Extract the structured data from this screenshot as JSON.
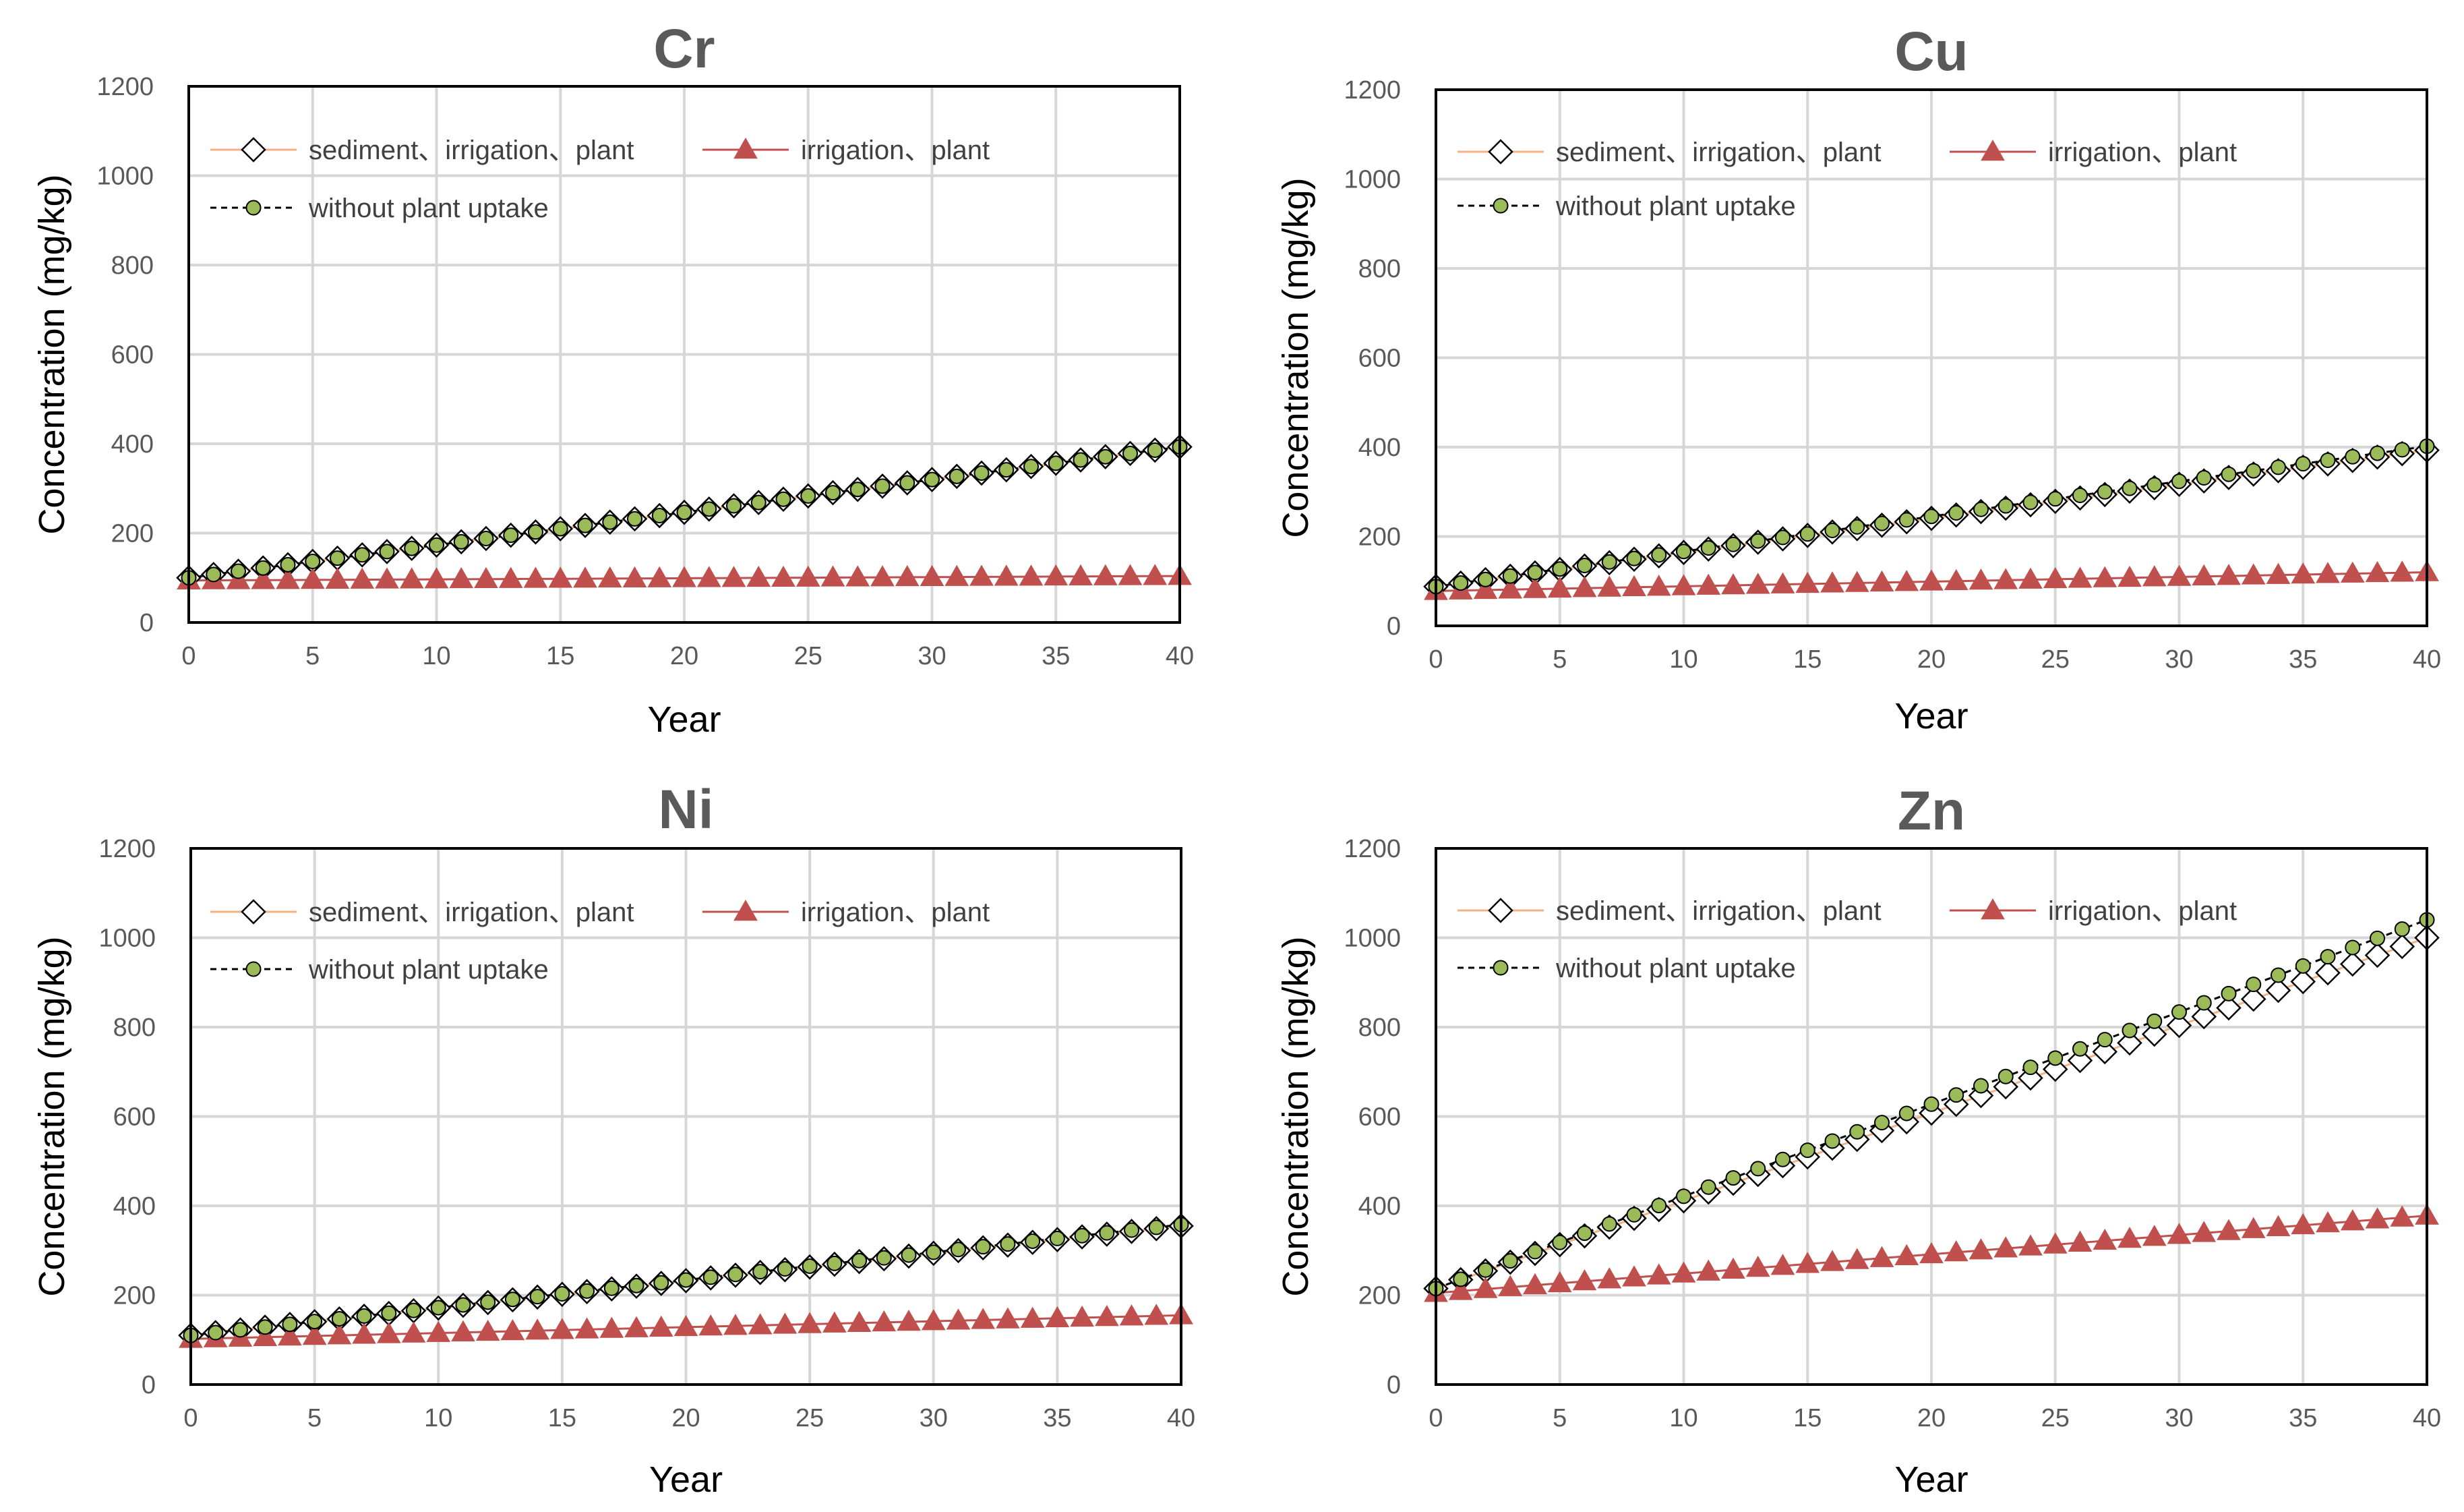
{
  "chart_data": [
    {
      "type": "line",
      "title": "Cr",
      "xlabel": "Year",
      "ylabel": "Concentration (mg/kg)",
      "xlim": [
        0,
        40
      ],
      "ylim": [
        0,
        1200
      ],
      "xticks": [
        "0",
        "5",
        "10",
        "15",
        "20",
        "25",
        "30",
        "35",
        "40"
      ],
      "yticks": [
        "0",
        "200",
        "400",
        "600",
        "800",
        "1000",
        "1200"
      ],
      "grid": true,
      "legend_position": "top-left",
      "x": "0..40 by 1",
      "series": [
        {
          "name": "sediment、irrigation、plant",
          "marker": "diamond",
          "start": 100,
          "end": 393
        },
        {
          "name": "irrigation、plant",
          "marker": "triangle",
          "start": 94,
          "end": 104
        },
        {
          "name": "without plant uptake",
          "marker": "circle",
          "start": 100,
          "end": 393
        }
      ]
    },
    {
      "type": "line",
      "title": "Cu",
      "xlabel": "Year",
      "ylabel": "Concentration (mg/kg)",
      "xlim": [
        0,
        40
      ],
      "ylim": [
        0,
        1200
      ],
      "xticks": [
        "0",
        "5",
        "10",
        "15",
        "20",
        "25",
        "30",
        "35",
        "40"
      ],
      "yticks": [
        "0",
        "200",
        "400",
        "600",
        "800",
        "1000",
        "1200"
      ],
      "grid": true,
      "legend_position": "top-left",
      "x": "0..40 by 1",
      "series": [
        {
          "name": "sediment、irrigation、plant",
          "marker": "diamond",
          "start": 88,
          "end": 393
        },
        {
          "name": "irrigation、plant",
          "marker": "triangle",
          "start": 78,
          "end": 120
        },
        {
          "name": "without plant uptake",
          "marker": "circle",
          "start": 88,
          "end": 402
        }
      ]
    },
    {
      "type": "line",
      "title": "Ni",
      "xlabel": "Year",
      "ylabel": "Concentration (mg/kg)",
      "xlim": [
        0,
        40
      ],
      "ylim": [
        0,
        1200
      ],
      "xticks": [
        "0",
        "5",
        "10",
        "15",
        "20",
        "25",
        "30",
        "35",
        "40"
      ],
      "yticks": [
        "0",
        "200",
        "400",
        "600",
        "800",
        "1000",
        "1200"
      ],
      "grid": true,
      "legend_position": "top-left",
      "x": "0..40 by 1",
      "series": [
        {
          "name": "sediment、irrigation、plant",
          "marker": "diamond",
          "start": 110,
          "end": 355
        },
        {
          "name": "irrigation、plant",
          "marker": "triangle",
          "start": 102,
          "end": 155
        },
        {
          "name": "without plant uptake",
          "marker": "circle",
          "start": 110,
          "end": 358
        }
      ]
    },
    {
      "type": "line",
      "title": "Zn",
      "xlabel": "Year",
      "ylabel": "Concentration (mg/kg)",
      "xlim": [
        0,
        40
      ],
      "ylim": [
        0,
        1200
      ],
      "xticks": [
        "0",
        "5",
        "10",
        "15",
        "20",
        "25",
        "30",
        "35",
        "40"
      ],
      "yticks": [
        "0",
        "200",
        "400",
        "600",
        "800",
        "1000",
        "1200"
      ],
      "grid": true,
      "legend_position": "top-left",
      "x": "0..40 by 1",
      "series": [
        {
          "name": "sediment、irrigation、plant",
          "marker": "diamond",
          "start": 215,
          "end": 1000
        },
        {
          "name": "irrigation、plant",
          "marker": "triangle",
          "start": 205,
          "end": 378
        },
        {
          "name": "without plant uptake",
          "marker": "circle",
          "start": 215,
          "end": 1040
        }
      ]
    }
  ],
  "colors": {
    "diamond_line": "#f4b183",
    "diamond_fill": "#ffffff",
    "diamond_stroke": "#000000",
    "triangle_fill": "#c0504d",
    "triangle_line": "#c0504d",
    "circle_fill": "#9bbb59",
    "circle_stroke": "#000000",
    "dashed_line": "#000000"
  }
}
